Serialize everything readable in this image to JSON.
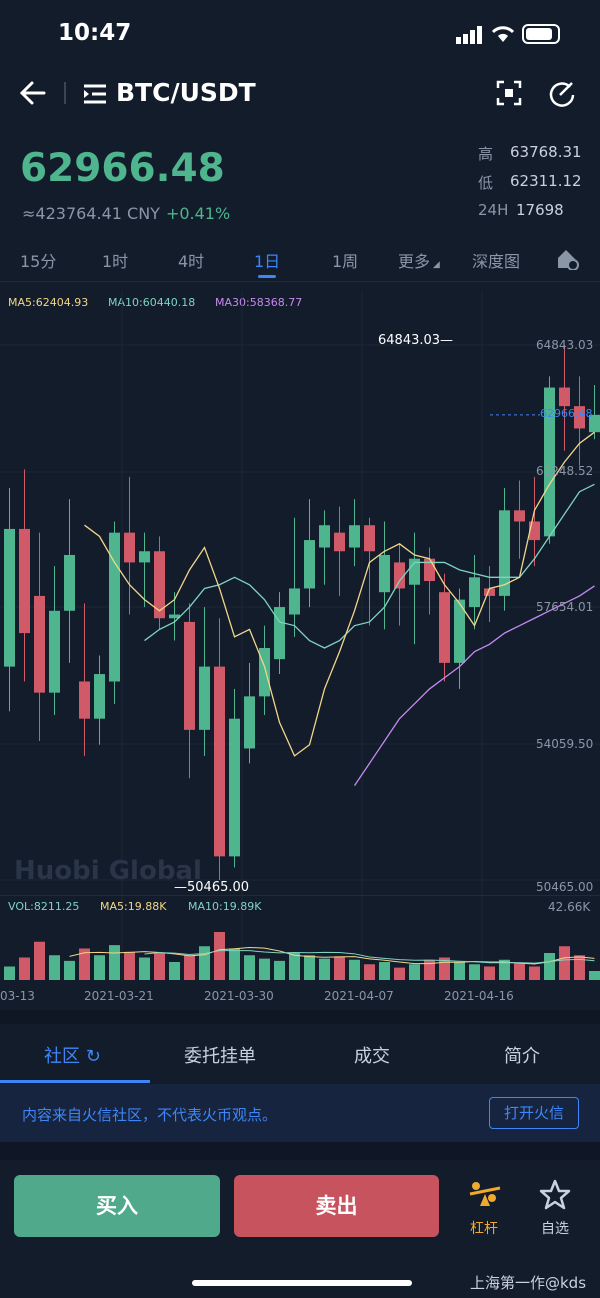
{
  "status": {
    "time": "10:47"
  },
  "header": {
    "title": "BTC/USDT"
  },
  "ticker": {
    "price": "62966.48",
    "cny": "≈423764.41 CNY",
    "change": "+0.41%",
    "high_label": "高",
    "high": "63768.31",
    "low_label": "低",
    "low": "62311.12",
    "vol_label": "24H",
    "vol": "17698"
  },
  "tabs": [
    "15分",
    "1时",
    "4时",
    "1日",
    "1周",
    "更多",
    "深度图"
  ],
  "active_tab": "1日",
  "ma": {
    "ma5": "MA5:62404.93",
    "ma10": "MA10:60440.18",
    "ma30": "MA30:58368.77"
  },
  "y_labels": [
    "64843.03",
    "61248.52",
    "57654.01",
    "54059.50",
    "50465.00"
  ],
  "current_price_label": "62966.48",
  "max_label": "64843.03",
  "min_label": "50465.00",
  "watermark": "Huobi Global",
  "vol": {
    "vol": "VOL:8211.25",
    "ma5": "MA5:19.88K",
    "ma10": "MA10:19.89K",
    "max": "42.66K"
  },
  "x_labels": [
    "03-13",
    "2021-03-21",
    "2021-03-30",
    "2021-04-07",
    "2021-04-16"
  ],
  "colors": {
    "up": "#4fb58e",
    "down": "#d05a67",
    "accent": "#3e86f5",
    "ma5": "#f2d68a",
    "ma10": "#7fd3c1",
    "ma30": "#c689f0"
  },
  "chart_data": {
    "type": "candlestick",
    "ylim": [
      50465.0,
      64843.03
    ],
    "candles": [
      {
        "o": 56200,
        "c": 59900,
        "h": 61000,
        "l": 55000,
        "v": 12
      },
      {
        "o": 59900,
        "c": 57100,
        "h": 61500,
        "l": 55800,
        "v": 20
      },
      {
        "o": 58100,
        "c": 55500,
        "h": 59800,
        "l": 54200,
        "v": 34
      },
      {
        "o": 55500,
        "c": 57700,
        "h": 58900,
        "l": 54900,
        "v": 22
      },
      {
        "o": 57700,
        "c": 59200,
        "h": 60700,
        "l": 56300,
        "v": 17
      },
      {
        "o": 55800,
        "c": 54800,
        "h": 57900,
        "l": 53800,
        "v": 28
      },
      {
        "o": 54800,
        "c": 56000,
        "h": 56500,
        "l": 54100,
        "v": 22
      },
      {
        "o": 55800,
        "c": 59800,
        "h": 60100,
        "l": 55200,
        "v": 31
      },
      {
        "o": 59800,
        "c": 59000,
        "h": 61300,
        "l": 57600,
        "v": 25
      },
      {
        "o": 59000,
        "c": 59300,
        "h": 59800,
        "l": 57800,
        "v": 20
      },
      {
        "o": 59300,
        "c": 57500,
        "h": 59700,
        "l": 57200,
        "v": 24
      },
      {
        "o": 57500,
        "c": 57600,
        "h": 58200,
        "l": 56900,
        "v": 16
      },
      {
        "o": 57400,
        "c": 54500,
        "h": 57900,
        "l": 53200,
        "v": 22
      },
      {
        "o": 54500,
        "c": 56200,
        "h": 57800,
        "l": 53800,
        "v": 30
      },
      {
        "o": 56200,
        "c": 51100,
        "h": 57500,
        "l": 50465,
        "v": 42.66
      },
      {
        "o": 51100,
        "c": 54800,
        "h": 55600,
        "l": 50800,
        "v": 28
      },
      {
        "o": 54000,
        "c": 55400,
        "h": 56300,
        "l": 53600,
        "v": 22
      },
      {
        "o": 55400,
        "c": 56700,
        "h": 57300,
        "l": 54900,
        "v": 19
      },
      {
        "o": 56400,
        "c": 57800,
        "h": 58200,
        "l": 56000,
        "v": 17
      },
      {
        "o": 57600,
        "c": 58300,
        "h": 60200,
        "l": 57000,
        "v": 24
      },
      {
        "o": 58300,
        "c": 59600,
        "h": 60700,
        "l": 57800,
        "v": 22
      },
      {
        "o": 59400,
        "c": 60000,
        "h": 60400,
        "l": 58400,
        "v": 19
      },
      {
        "o": 59800,
        "c": 59300,
        "h": 60500,
        "l": 58100,
        "v": 21
      },
      {
        "o": 59400,
        "c": 60000,
        "h": 60700,
        "l": 58900,
        "v": 18
      },
      {
        "o": 60000,
        "c": 59300,
        "h": 60200,
        "l": 57300,
        "v": 14
      },
      {
        "o": 58200,
        "c": 59200,
        "h": 60100,
        "l": 57200,
        "v": 16
      },
      {
        "o": 59000,
        "c": 58300,
        "h": 59500,
        "l": 57300,
        "v": 11
      },
      {
        "o": 58400,
        "c": 59100,
        "h": 59800,
        "l": 56800,
        "v": 14
      },
      {
        "o": 59100,
        "c": 58500,
        "h": 59400,
        "l": 57600,
        "v": 18
      },
      {
        "o": 58200,
        "c": 56300,
        "h": 58700,
        "l": 55800,
        "v": 20
      },
      {
        "o": 56300,
        "c": 58000,
        "h": 58300,
        "l": 55600,
        "v": 16
      },
      {
        "o": 57800,
        "c": 58600,
        "h": 59200,
        "l": 57200,
        "v": 14
      },
      {
        "o": 58300,
        "c": 58100,
        "h": 58900,
        "l": 57400,
        "v": 12
      },
      {
        "o": 58100,
        "c": 60400,
        "h": 61000,
        "l": 57700,
        "v": 18
      },
      {
        "o": 60400,
        "c": 60100,
        "h": 61200,
        "l": 59100,
        "v": 15
      },
      {
        "o": 60100,
        "c": 59600,
        "h": 61300,
        "l": 58900,
        "v": 12
      },
      {
        "o": 59700,
        "c": 63700,
        "h": 64000,
        "l": 59500,
        "v": 24
      },
      {
        "o": 63700,
        "c": 63200,
        "h": 64843.03,
        "l": 62000,
        "v": 30
      },
      {
        "o": 63200,
        "c": 62600,
        "h": 64000,
        "l": 61600,
        "v": 22
      },
      {
        "o": 62500,
        "c": 62966.48,
        "h": 63768,
        "l": 62311,
        "v": 8
      }
    ],
    "ma5": [
      60000,
      59700,
      59000,
      58400,
      58000,
      57700,
      58000,
      58800,
      59400,
      58300,
      57000,
      57200,
      56200,
      54700,
      53800,
      54100,
      55600,
      56600,
      57700,
      59000,
      59300,
      59500,
      59200,
      59100,
      58400,
      57900,
      57300,
      58300,
      58400,
      58600,
      60400,
      61100,
      61700,
      62200,
      62500
    ],
    "ma10": [
      56900,
      57200,
      57400,
      57800,
      58300,
      58400,
      58600,
      58400,
      58000,
      57400,
      57300,
      56900,
      56700,
      56900,
      57300,
      57400,
      57800,
      58500,
      59000,
      59000,
      59000,
      58800,
      58700,
      58600,
      58600,
      58600,
      59100,
      59700,
      60300,
      60900,
      61100
    ],
    "ma30": [
      53000,
      53600,
      54200,
      54800,
      55200,
      55600,
      55900,
      56200,
      56600,
      56800,
      57100,
      57300,
      57500,
      57700,
      57900,
      58100,
      58368.77
    ]
  },
  "content_tabs": [
    "社区",
    "委托挂单",
    "成交",
    "简介"
  ],
  "notice": {
    "text": "内容来自火信社区，不代表火币观点。",
    "button": "打开火信"
  },
  "actions": {
    "buy": "买入",
    "sell": "卖出",
    "leverage": "杠杆",
    "favorite": "自选"
  },
  "credit": "上海第一作@kds"
}
